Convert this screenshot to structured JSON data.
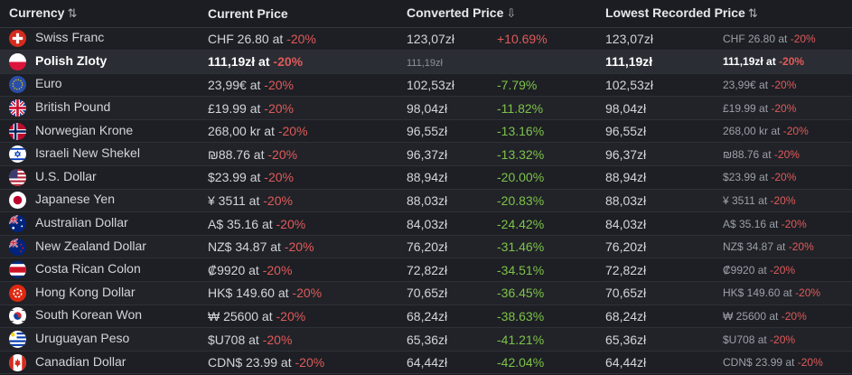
{
  "header": {
    "currency": "Currency",
    "current_price": "Current Price",
    "converted_price": "Converted Price",
    "lowest_recorded_price": "Lowest Recorded Price",
    "sort_icon_currency": "⇅",
    "sort_icon_converted": "⇩",
    "sort_icon_lowest": "⇅"
  },
  "rows": [
    {
      "currency": "Swiss Franc",
      "flag": "swiss-flag",
      "price": "CHF 26.80 at ",
      "discount": "-20%",
      "converted": "123,07zł",
      "pct": "+10.69%",
      "pct_color": "red",
      "lowest": "123,07zł",
      "lowest_sub": "CHF 26.80 at ",
      "lowest_discount": "-20%"
    },
    {
      "currency": "Polish Zloty",
      "flag": "poland-flag",
      "price": "111,19zł at ",
      "discount": "-20%",
      "converted": "111,19zł",
      "pct": "",
      "pct_color": "",
      "lowest": "111,19zł",
      "lowest_sub": "111,19zł at ",
      "lowest_discount": "-20%",
      "current": true
    },
    {
      "currency": "Euro",
      "flag": "eu-flag",
      "price": "23,99€ at ",
      "discount": "-20%",
      "converted": "102,53zł",
      "pct": "-7.79%",
      "pct_color": "green",
      "lowest": "102,53zł",
      "lowest_sub": "23,99€ at ",
      "lowest_discount": "-20%"
    },
    {
      "currency": "British Pound",
      "flag": "uk-flag",
      "price": "£19.99 at ",
      "discount": "-20%",
      "converted": "98,04zł",
      "pct": "-11.82%",
      "pct_color": "green",
      "lowest": "98,04zł",
      "lowest_sub": "£19.99 at ",
      "lowest_discount": "-20%"
    },
    {
      "currency": "Norwegian Krone",
      "flag": "norway-flag",
      "price": "268,00 kr at ",
      "discount": "-20%",
      "converted": "96,55zł",
      "pct": "-13.16%",
      "pct_color": "green",
      "lowest": "96,55zł",
      "lowest_sub": "268,00 kr at ",
      "lowest_discount": "-20%"
    },
    {
      "currency": "Israeli New Shekel",
      "flag": "israel-flag",
      "price": "₪88.76 at ",
      "discount": "-20%",
      "converted": "96,37zł",
      "pct": "-13.32%",
      "pct_color": "green",
      "lowest": "96,37zł",
      "lowest_sub": "₪88.76 at ",
      "lowest_discount": "-20%"
    },
    {
      "currency": "U.S. Dollar",
      "flag": "us-flag",
      "price": "$23.99 at ",
      "discount": "-20%",
      "converted": "88,94zł",
      "pct": "-20.00%",
      "pct_color": "green",
      "lowest": "88,94zł",
      "lowest_sub": "$23.99 at ",
      "lowest_discount": "-20%"
    },
    {
      "currency": "Japanese Yen",
      "flag": "japan-flag",
      "price": "¥ 3511 at ",
      "discount": "-20%",
      "converted": "88,03zł",
      "pct": "-20.83%",
      "pct_color": "green",
      "lowest": "88,03zł",
      "lowest_sub": "¥ 3511 at ",
      "lowest_discount": "-20%"
    },
    {
      "currency": "Australian Dollar",
      "flag": "australia-flag",
      "price": "A$ 35.16 at ",
      "discount": "-20%",
      "converted": "84,03zł",
      "pct": "-24.42%",
      "pct_color": "green",
      "lowest": "84,03zł",
      "lowest_sub": "A$ 35.16 at ",
      "lowest_discount": "-20%"
    },
    {
      "currency": "New Zealand Dollar",
      "flag": "new-zealand-flag",
      "price": "NZ$ 34.87 at ",
      "discount": "-20%",
      "converted": "76,20zł",
      "pct": "-31.46%",
      "pct_color": "green",
      "lowest": "76,20zł",
      "lowest_sub": "NZ$ 34.87 at ",
      "lowest_discount": "-20%"
    },
    {
      "currency": "Costa Rican Colon",
      "flag": "costa-rica-flag",
      "price": "₡9920 at ",
      "discount": "-20%",
      "converted": "72,82zł",
      "pct": "-34.51%",
      "pct_color": "green",
      "lowest": "72,82zł",
      "lowest_sub": "₡9920 at ",
      "lowest_discount": "-20%"
    },
    {
      "currency": "Hong Kong Dollar",
      "flag": "hong-kong-flag",
      "price": "HK$ 149.60 at ",
      "discount": "-20%",
      "converted": "70,65zł",
      "pct": "-36.45%",
      "pct_color": "green",
      "lowest": "70,65zł",
      "lowest_sub": "HK$ 149.60 at ",
      "lowest_discount": "-20%"
    },
    {
      "currency": "South Korean Won",
      "flag": "south-korea-flag",
      "price": "₩ 25600 at ",
      "discount": "-20%",
      "converted": "68,24zł",
      "pct": "-38.63%",
      "pct_color": "green",
      "lowest": "68,24zł",
      "lowest_sub": "₩ 25600 at ",
      "lowest_discount": "-20%"
    },
    {
      "currency": "Uruguayan Peso",
      "flag": "uruguay-flag",
      "price": "$U708 at ",
      "discount": "-20%",
      "converted": "65,36zł",
      "pct": "-41.21%",
      "pct_color": "green",
      "lowest": "65,36zł",
      "lowest_sub": "$U708 at ",
      "lowest_discount": "-20%"
    },
    {
      "currency": "Canadian Dollar",
      "flag": "canada-flag",
      "price": "CDN$ 23.99 at ",
      "discount": "-20%",
      "converted": "64,44zł",
      "pct": "-42.04%",
      "pct_color": "green",
      "lowest": "64,44zł",
      "lowest_sub": "CDN$ 23.99 at ",
      "lowest_discount": "-20%"
    }
  ],
  "colors": {
    "discount": "#e05a5a",
    "pct_green": "#7ec24a",
    "pct_red": "#e05a5a"
  }
}
